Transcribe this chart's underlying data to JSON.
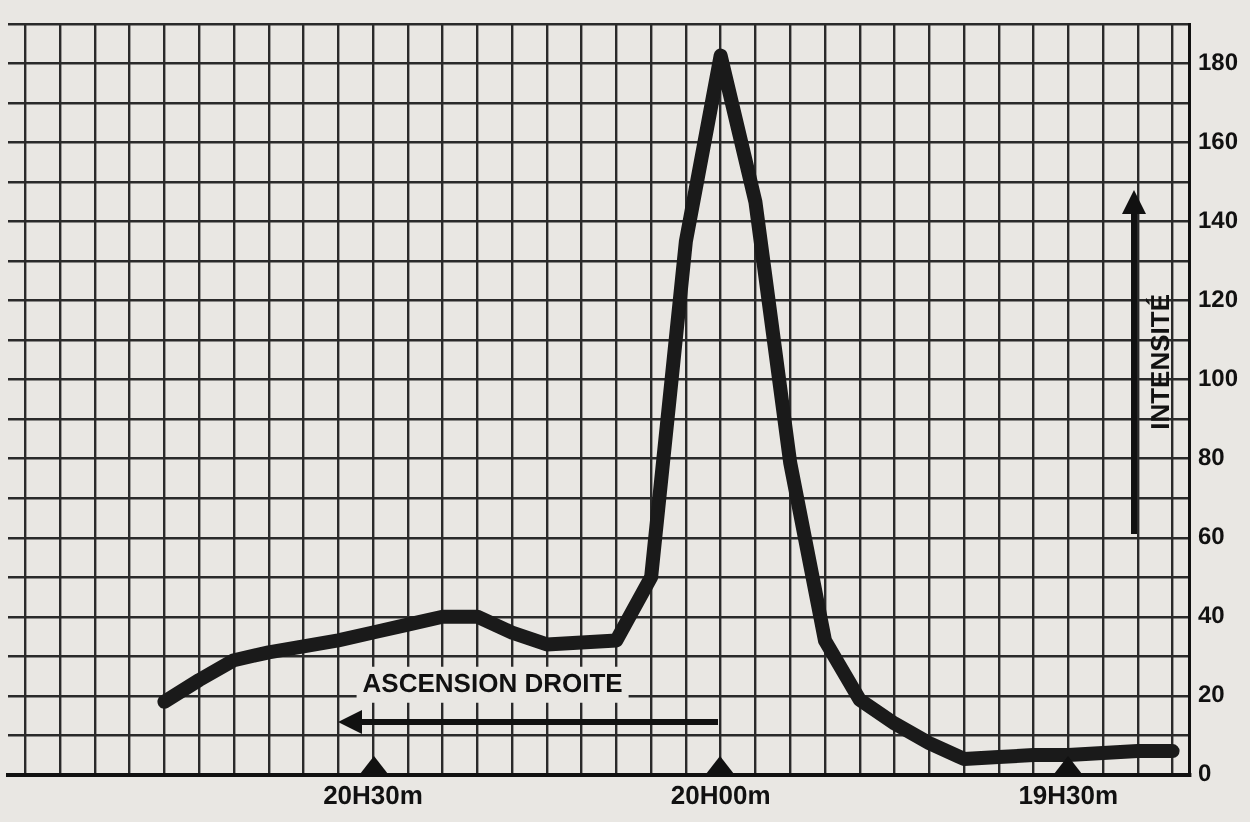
{
  "chart_data": {
    "type": "line",
    "xlabel": "ASCENSION DROITE",
    "ylabel": "INTENSITÉ",
    "categories": [
      null,
      null,
      null,
      null,
      null,
      null,
      null,
      null,
      null,
      null,
      "20H30m",
      null,
      null,
      null,
      null,
      null,
      null,
      null,
      null,
      null,
      "20H00m",
      null,
      null,
      null,
      null,
      null,
      null,
      null,
      null,
      null,
      "19H30m",
      null,
      null,
      null
    ],
    "series": [
      {
        "color": "#1a1a1a",
        "values": [
          null,
          null,
          null,
          null,
          18.5,
          24,
          29,
          31,
          32.5,
          34,
          36,
          38,
          40,
          40,
          36,
          33,
          33.5,
          34,
          50,
          135,
          182,
          145,
          79,
          34,
          19,
          13,
          8,
          4,
          4.5,
          5,
          5,
          5.5,
          6,
          6
        ]
      }
    ],
    "ylim": [
      0,
      190
    ],
    "yticks": [
      0,
      {
        "value": 10,
        "label": null
      },
      20,
      {
        "value": 30,
        "label": null
      },
      40,
      {
        "value": 50,
        "label": null
      },
      60,
      {
        "value": 70,
        "label": null
      },
      80,
      {
        "value": 90,
        "label": null
      },
      100,
      {
        "value": 110,
        "label": null
      },
      120,
      {
        "value": 130,
        "label": null
      },
      140,
      {
        "value": 150,
        "label": null
      },
      160,
      {
        "value": 170,
        "label": null
      },
      180,
      {
        "value": 190,
        "label": null
      }
    ],
    "grid": true,
    "legend": false,
    "marker": "none",
    "line_style": "solid"
  }
}
